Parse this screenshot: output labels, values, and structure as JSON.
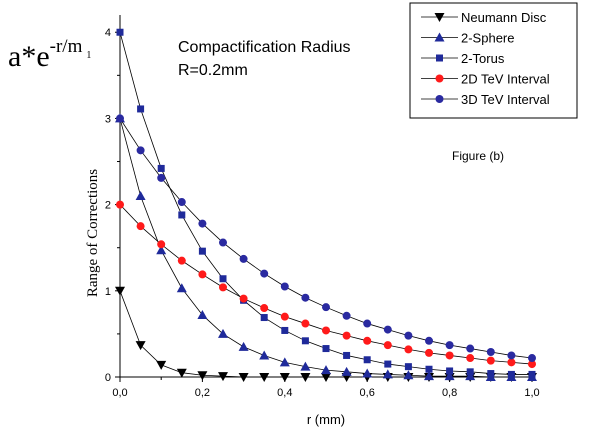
{
  "chart_data": {
    "type": "line",
    "formula": {
      "base": "a*e",
      "exponent": "-r/m",
      "subscript": "1"
    },
    "annotation": {
      "line1": "Compactification Radius",
      "line2": "R=0.2mm"
    },
    "figure_label": "Figure (b)",
    "xlabel": "r (mm)",
    "ylabel": "Range of Corrections",
    "xlim": [
      0,
      1.0
    ],
    "ylim": [
      0,
      4.2
    ],
    "xticks": [
      0,
      0.2,
      0.4,
      0.6,
      0.8,
      1.0
    ],
    "xtick_labels": [
      "0,0",
      "0,2",
      "0,4",
      "0,6",
      "0,8",
      "1,0"
    ],
    "yticks": [
      0,
      1,
      2,
      3,
      4
    ],
    "ytick_labels": [
      "0",
      "1",
      "2",
      "3",
      "4"
    ],
    "legend_position": "top-right",
    "series": [
      {
        "name": "Neumann Disc",
        "marker": "triangle-down",
        "color": "#000000",
        "points": [
          [
            0,
            1.0
          ],
          [
            0.05,
            0.37
          ],
          [
            0.1,
            0.14
          ],
          [
            0.15,
            0.05
          ],
          [
            0.2,
            0.02
          ],
          [
            0.25,
            0.01
          ],
          [
            0.3,
            0.0
          ],
          [
            0.35,
            0.0
          ],
          [
            0.4,
            0.0
          ],
          [
            0.45,
            0.0
          ],
          [
            0.5,
            0.0
          ],
          [
            0.55,
            0.0
          ],
          [
            0.6,
            0.0
          ],
          [
            0.65,
            0.0
          ],
          [
            0.7,
            0.0
          ],
          [
            0.75,
            0.0
          ],
          [
            0.8,
            0.0
          ],
          [
            0.85,
            0.0
          ],
          [
            0.9,
            0.0
          ],
          [
            0.95,
            0.0
          ],
          [
            1.0,
            0.0
          ]
        ]
      },
      {
        "name": "2-Sphere",
        "marker": "triangle-up",
        "color": "#1f2a9a",
        "points": [
          [
            0,
            3.0
          ],
          [
            0.05,
            2.1
          ],
          [
            0.1,
            1.47
          ],
          [
            0.15,
            1.03
          ],
          [
            0.2,
            0.72
          ],
          [
            0.25,
            0.5
          ],
          [
            0.3,
            0.35
          ],
          [
            0.35,
            0.25
          ],
          [
            0.4,
            0.17
          ],
          [
            0.45,
            0.12
          ],
          [
            0.5,
            0.08
          ],
          [
            0.55,
            0.06
          ],
          [
            0.6,
            0.04
          ],
          [
            0.65,
            0.03
          ],
          [
            0.7,
            0.02
          ],
          [
            0.75,
            0.01
          ],
          [
            0.8,
            0.01
          ],
          [
            0.85,
            0.01
          ],
          [
            0.9,
            0.0
          ],
          [
            0.95,
            0.0
          ],
          [
            1.0,
            0.0
          ]
        ]
      },
      {
        "name": "2-Torus",
        "marker": "square",
        "color": "#1f2a9a",
        "points": [
          [
            0,
            4.0
          ],
          [
            0.05,
            3.11
          ],
          [
            0.1,
            2.42
          ],
          [
            0.15,
            1.88
          ],
          [
            0.2,
            1.46
          ],
          [
            0.25,
            1.14
          ],
          [
            0.3,
            0.89
          ],
          [
            0.35,
            0.69
          ],
          [
            0.4,
            0.54
          ],
          [
            0.45,
            0.42
          ],
          [
            0.5,
            0.33
          ],
          [
            0.55,
            0.25
          ],
          [
            0.6,
            0.2
          ],
          [
            0.65,
            0.15
          ],
          [
            0.7,
            0.12
          ],
          [
            0.75,
            0.09
          ],
          [
            0.8,
            0.07
          ],
          [
            0.85,
            0.06
          ],
          [
            0.9,
            0.04
          ],
          [
            0.95,
            0.03
          ],
          [
            1.0,
            0.03
          ]
        ]
      },
      {
        "name": "2D TeV Interval",
        "marker": "circle",
        "color": "#ff1a1a",
        "points": [
          [
            0,
            2.0
          ],
          [
            0.05,
            1.75
          ],
          [
            0.1,
            1.54
          ],
          [
            0.15,
            1.35
          ],
          [
            0.2,
            1.19
          ],
          [
            0.25,
            1.04
          ],
          [
            0.3,
            0.91
          ],
          [
            0.35,
            0.8
          ],
          [
            0.4,
            0.7
          ],
          [
            0.45,
            0.62
          ],
          [
            0.5,
            0.54
          ],
          [
            0.55,
            0.48
          ],
          [
            0.6,
            0.42
          ],
          [
            0.65,
            0.37
          ],
          [
            0.7,
            0.32
          ],
          [
            0.75,
            0.28
          ],
          [
            0.8,
            0.25
          ],
          [
            0.85,
            0.22
          ],
          [
            0.9,
            0.19
          ],
          [
            0.95,
            0.17
          ],
          [
            1.0,
            0.15
          ]
        ]
      },
      {
        "name": "3D TeV Interval",
        "marker": "circle",
        "color": "#2a2aa0",
        "points": [
          [
            0,
            3.0
          ],
          [
            0.05,
            2.63
          ],
          [
            0.1,
            2.31
          ],
          [
            0.15,
            2.03
          ],
          [
            0.2,
            1.78
          ],
          [
            0.25,
            1.56
          ],
          [
            0.3,
            1.37
          ],
          [
            0.35,
            1.2
          ],
          [
            0.4,
            1.05
          ],
          [
            0.45,
            0.92
          ],
          [
            0.5,
            0.81
          ],
          [
            0.55,
            0.71
          ],
          [
            0.6,
            0.62
          ],
          [
            0.65,
            0.55
          ],
          [
            0.7,
            0.48
          ],
          [
            0.75,
            0.42
          ],
          [
            0.8,
            0.37
          ],
          [
            0.85,
            0.33
          ],
          [
            0.9,
            0.29
          ],
          [
            0.95,
            0.25
          ],
          [
            1.0,
            0.22
          ]
        ]
      }
    ]
  }
}
